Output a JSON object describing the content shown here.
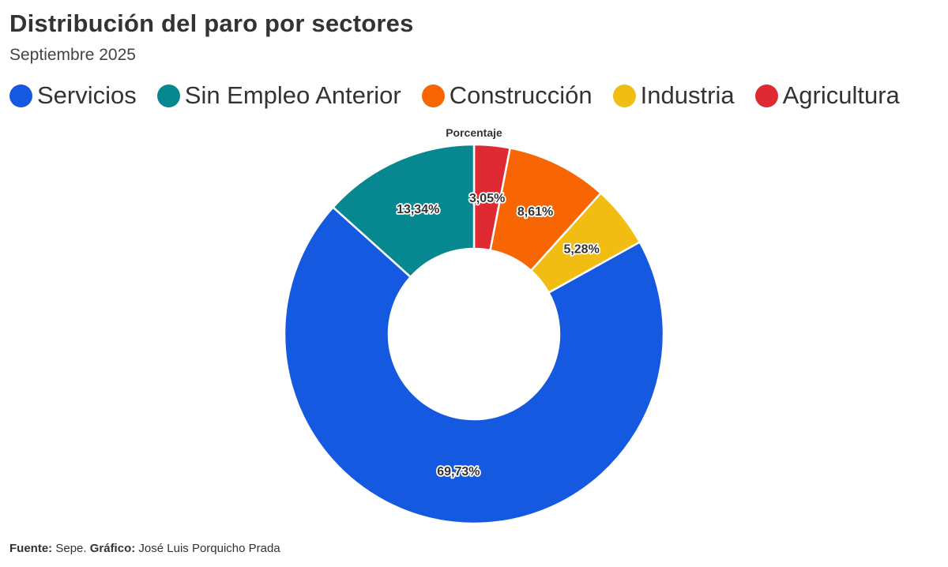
{
  "header": {
    "title": "Distribución del paro por sectores",
    "subtitle": "Septiembre 2025"
  },
  "chart_data": {
    "type": "pie",
    "variant": "donut",
    "series_label": "Porcentaje",
    "legend_position": "top-left",
    "slices": [
      {
        "label": "Servicios",
        "value": 69.73,
        "display": "69,73%",
        "color": "#1559e0"
      },
      {
        "label": "Sin Empleo Anterior",
        "value": 13.34,
        "display": "13,34%",
        "color": "#07878f"
      },
      {
        "label": "Construcción",
        "value": 8.61,
        "display": "8,61%",
        "color": "#f86503"
      },
      {
        "label": "Industria",
        "value": 5.28,
        "display": "5,28%",
        "color": "#f1bd13"
      },
      {
        "label": "Agricultura",
        "value": 3.05,
        "display": "3,05%",
        "color": "#df2a33"
      }
    ],
    "clockwise_draw_order": [
      "Agricultura",
      "Construcción",
      "Industria",
      "Servicios",
      "Sin Empleo Anterior"
    ]
  },
  "footer": {
    "source_label": "Fuente:",
    "source_value": "Sepe.",
    "credit_label": "Gráfico:",
    "credit_value": "José Luis Porquicho Prada"
  }
}
